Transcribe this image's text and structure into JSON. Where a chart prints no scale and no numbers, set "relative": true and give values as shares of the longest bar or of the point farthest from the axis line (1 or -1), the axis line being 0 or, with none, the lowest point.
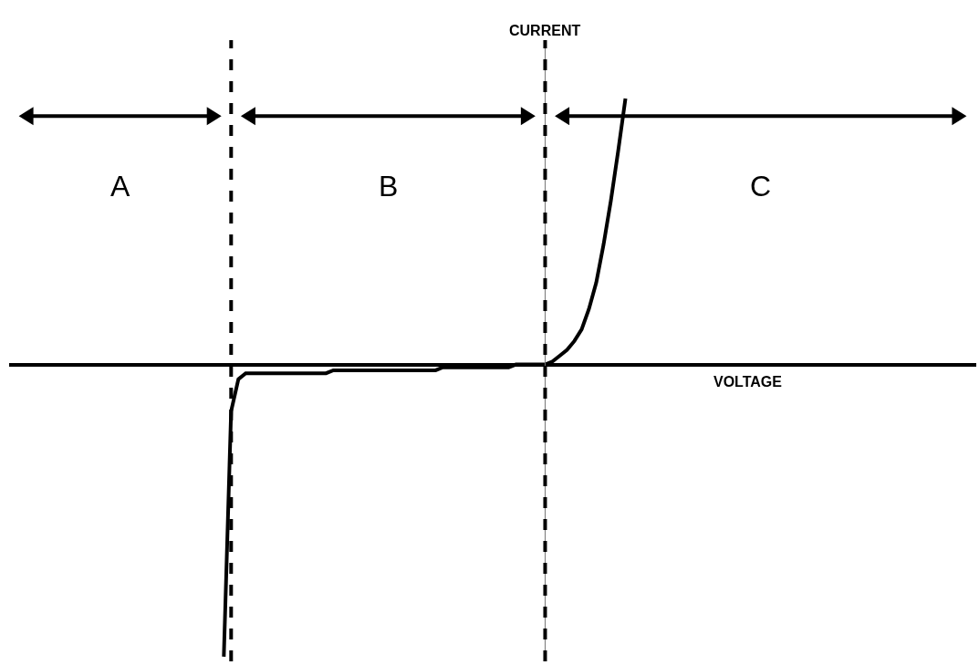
{
  "chart_data": {
    "type": "line",
    "relative": true,
    "ylabel": "CURRENT",
    "categories": [
      null,
      null,
      null,
      null,
      null,
      null,
      null,
      null,
      null,
      null,
      null,
      null,
      null,
      null,
      null,
      null,
      null,
      null,
      null,
      null,
      null,
      null,
      null,
      null,
      null,
      null,
      null,
      null,
      null,
      null,
      null,
      null,
      null,
      null,
      null,
      null,
      null,
      null,
      null,
      null,
      null,
      null,
      null,
      null,
      null,
      null,
      null,
      null,
      null,
      null,
      null,
      null,
      null,
      null,
      null,
      null
    ],
    "series": [
      {
        "color": "#000000",
        "values": [
          -1,
          -0.16,
          -0.05,
          -0.03,
          -0.03,
          -0.03,
          -0.03,
          -0.03,
          -0.03,
          -0.03,
          -0.03,
          -0.03,
          -0.03,
          -0.03,
          -0.03,
          -0.02,
          -0.02,
          -0.02,
          -0.02,
          -0.02,
          -0.02,
          -0.02,
          -0.02,
          -0.02,
          -0.02,
          -0.02,
          -0.02,
          -0.02,
          -0.02,
          -0.02,
          -0.01,
          -0.01,
          -0.01,
          -0.01,
          -0.01,
          -0.01,
          -0.01,
          -0.01,
          -0.01,
          -0.01,
          0,
          0,
          0,
          0,
          0,
          0.01,
          0.03,
          0.05,
          0.08,
          0.12,
          0.19,
          0.28,
          0.41,
          0.56,
          0.73,
          0.91
        ]
      }
    ],
    "annotations": [
      "A",
      "B",
      "C",
      "VOLTAGE"
    ],
    "marker": "none",
    "line_style": "solid"
  }
}
